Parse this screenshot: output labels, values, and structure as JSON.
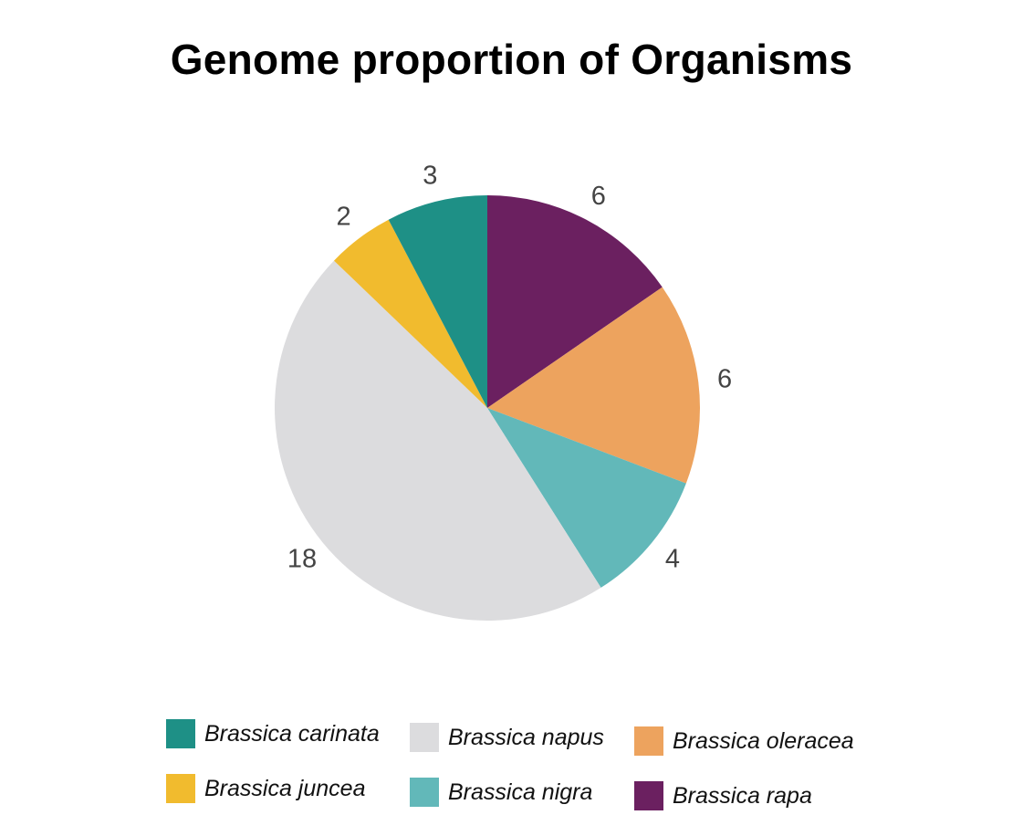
{
  "chart_data": {
    "type": "pie",
    "title": "Genome proportion of Organisms",
    "slices": [
      {
        "label": "Brassica rapa",
        "value": 6,
        "color": "#6b2060"
      },
      {
        "label": "Brassica oleracea",
        "value": 6,
        "color": "#eda35e"
      },
      {
        "label": "Brassica nigra",
        "value": 4,
        "color": "#62b8b9"
      },
      {
        "label": "Brassica napus",
        "value": 18,
        "color": "#dcdcde"
      },
      {
        "label": "Brassica juncea",
        "value": 2,
        "color": "#f1bb2e"
      },
      {
        "label": "Brassica carinata",
        "value": 3,
        "color": "#1e9086"
      }
    ],
    "legend": [
      "Brassica carinata",
      "Brassica napus",
      "Brassica oleracea",
      "Brassica juncea",
      "Brassica nigra",
      "Brassica rapa"
    ],
    "legend_position": "bottom",
    "data_labels": true
  }
}
